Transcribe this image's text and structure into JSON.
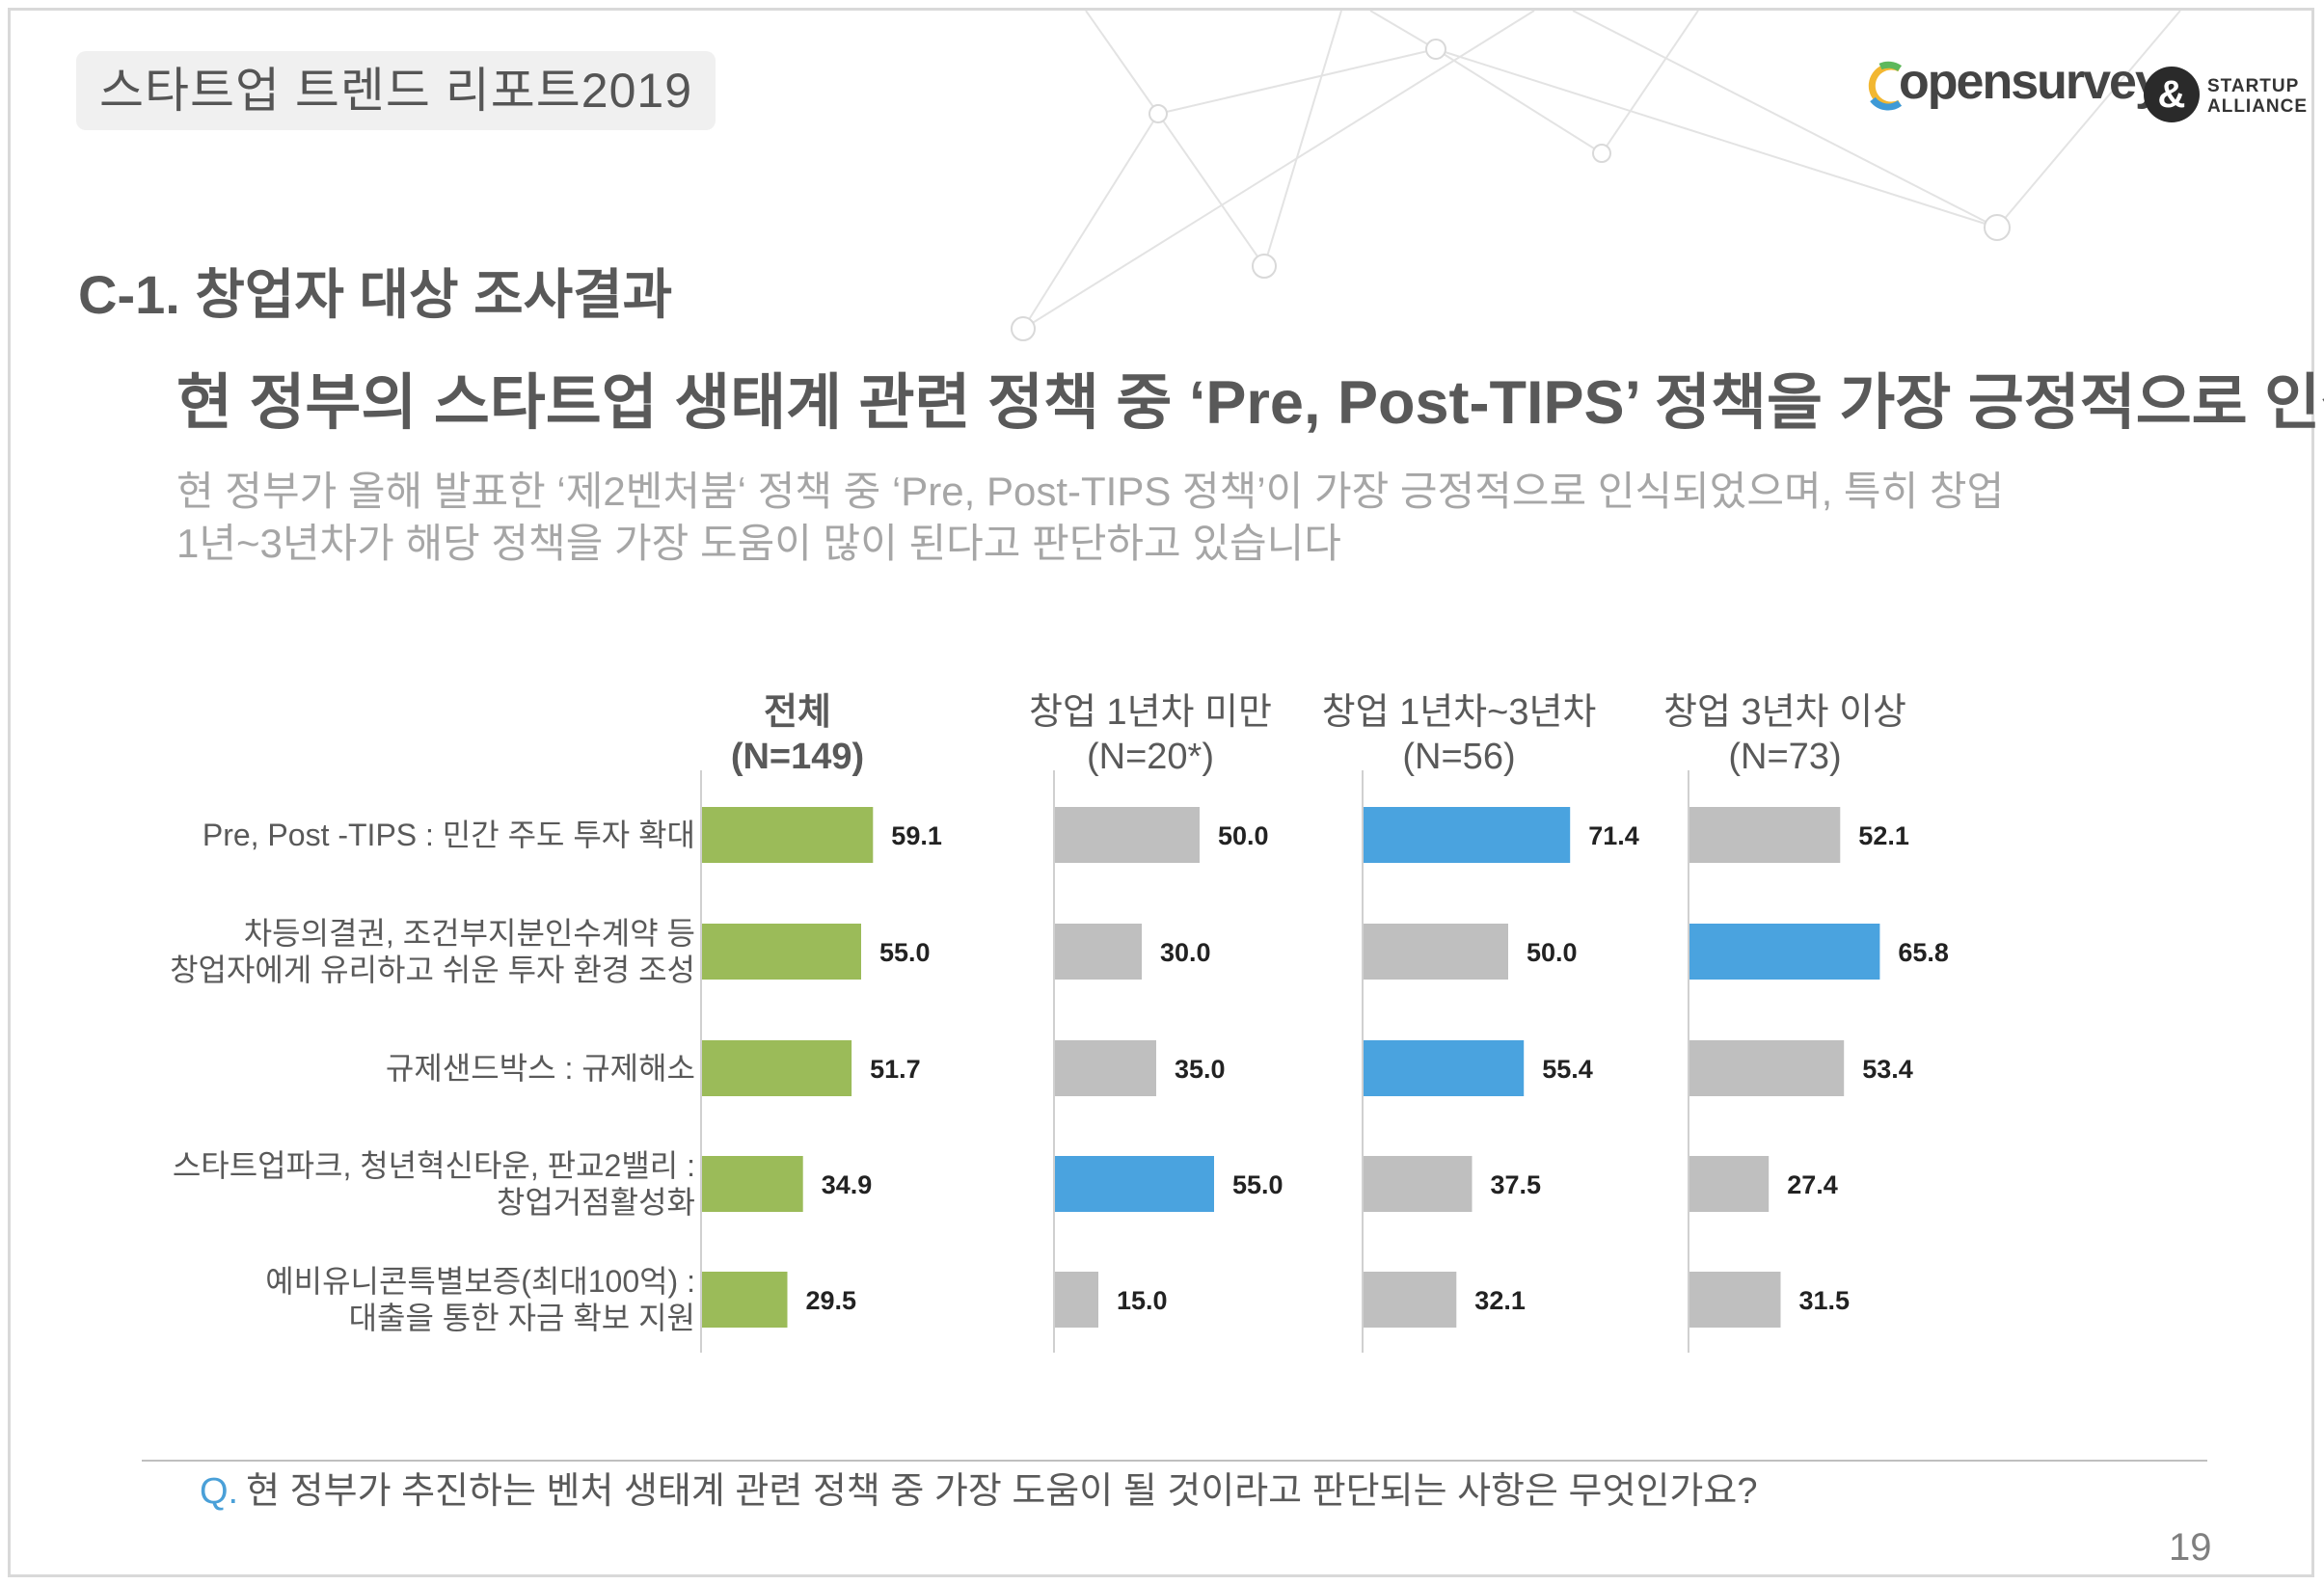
{
  "header": {
    "report_title": "스타트업 트렌드 리포트2019",
    "logo_primary": "opensurvey",
    "logo_secondary_line1": "STARTUP",
    "logo_secondary_line2": "ALLIANCE",
    "logo_amp": "&"
  },
  "section_title": "C-1. 창업자 대상 조사결과",
  "headline": "현 정부의 스타트업 생태계 관련 정책 중 ‘Pre, Post-TIPS’ 정책을 가장 긍정적으로 인식",
  "subtext": {
    "line1": "현 정부가 올해 발표한 ‘제2벤처붐‘ 정책 중 ‘Pre, Post-TIPS 정책’이 가장 긍정적으로 인식되었으며, 특히 창업",
    "line2": "1년~3년차가 해당 정책을 가장 도움이 많이 된다고 판단하고 있습니다"
  },
  "question": {
    "prefix": "Q.",
    "text": "현 정부가 추진하는 벤처 생태계 관련 정책 중 가장 도움이 될 것이라고 판단되는 사항은 무엇인가요?"
  },
  "page_number": "19",
  "colors": {
    "green": "#9bbb59",
    "gray": "#bfbfbf",
    "blue": "#4aa3df",
    "text": "#595959",
    "deco_line": "#e6e6e6"
  },
  "chart_data": {
    "type": "bar",
    "orientation": "horizontal",
    "categories": [
      [
        "Pre, Post -TIPS : 민간 주도 투자 확대"
      ],
      [
        "차등의결권, 조건부지분인수계약 등",
        "창업자에게 유리하고 쉬운 투자 환경 조성"
      ],
      [
        "규제샌드박스 : 규제해소"
      ],
      [
        "스타트업파크, 청년혁신타운, 판교2밸리 :",
        "창업거점활성화"
      ],
      [
        "예비유니콘특별보증(최대100억) :",
        "대출을 통한 자금 확보 지원"
      ]
    ],
    "xlim": [
      0,
      100
    ],
    "series": [
      {
        "name": "전체",
        "sample": "(N=149)",
        "bold_header": true,
        "values": [
          59.1,
          55.0,
          51.7,
          34.9,
          29.5
        ],
        "labels": [
          "59.1",
          "55.0",
          "51.7",
          "34.9",
          "29.5"
        ],
        "colors": [
          "green",
          "green",
          "green",
          "green",
          "green"
        ]
      },
      {
        "name": "창업 1년차 미만",
        "sample": "(N=20*)",
        "bold_header": false,
        "values": [
          50.0,
          30.0,
          35.0,
          55.0,
          15.0
        ],
        "labels": [
          "50.0",
          "30.0",
          "35.0",
          "55.0",
          "15.0"
        ],
        "colors": [
          "gray",
          "gray",
          "gray",
          "blue",
          "gray"
        ]
      },
      {
        "name": "창업 1년차~3년차",
        "sample": "(N=56)",
        "bold_header": false,
        "values": [
          71.4,
          50.0,
          55.4,
          37.5,
          32.1
        ],
        "labels": [
          "71.4",
          "50.0",
          "55.4",
          "37.5",
          "32.1"
        ],
        "colors": [
          "blue",
          "gray",
          "blue",
          "gray",
          "gray"
        ]
      },
      {
        "name": "창업 3년차 이상",
        "sample": "(N=73)",
        "bold_header": false,
        "values": [
          52.1,
          65.8,
          53.4,
          27.4,
          31.5
        ],
        "labels": [
          "52.1",
          "65.8",
          "53.4",
          "27.4",
          "31.5"
        ],
        "colors": [
          "gray",
          "blue",
          "gray",
          "gray",
          "gray"
        ]
      }
    ]
  }
}
